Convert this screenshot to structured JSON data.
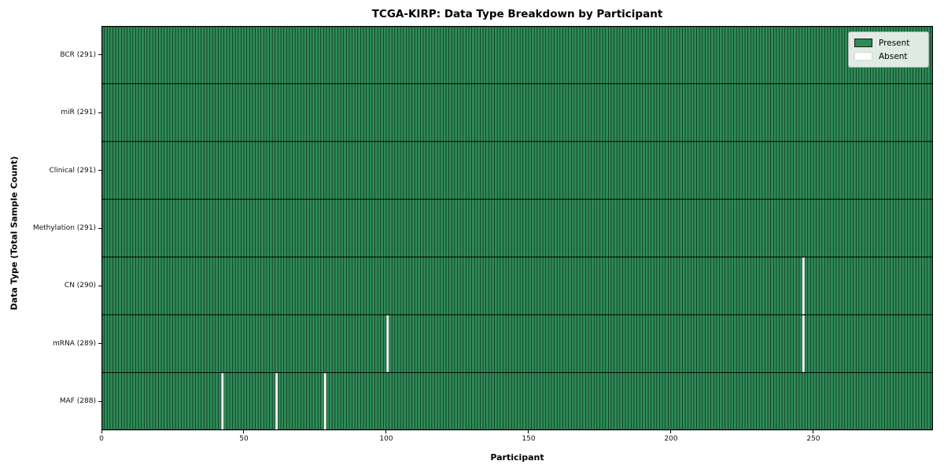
{
  "figure": {
    "title": "TCGA-KIRP: Data Type Breakdown by Participant",
    "xlabel": "Participant",
    "ylabel": "Data Type (Total Sample Count)"
  },
  "legend": {
    "items": [
      {
        "name": "present",
        "label": "Present",
        "color": "#2e8b57"
      },
      {
        "name": "absent",
        "label": "Absent",
        "color": "#ffffff"
      }
    ],
    "position": "upper right"
  },
  "chart_data": {
    "type": "heatmap",
    "title": "TCGA-KIRP: Data Type Breakdown by Participant",
    "xlabel": "Participant",
    "ylabel": "Data Type (Total Sample Count)",
    "n_participants": 291,
    "xlim": [
      0,
      292
    ],
    "x_ticks": [
      0,
      50,
      100,
      150,
      200,
      250
    ],
    "rows": [
      {
        "label": "BCR (291)",
        "data_type": "BCR",
        "present_count": 291,
        "absent_participants": []
      },
      {
        "label": "miR (291)",
        "data_type": "miR",
        "present_count": 291,
        "absent_participants": []
      },
      {
        "label": "Clinical (291)",
        "data_type": "Clinical",
        "present_count": 291,
        "absent_participants": []
      },
      {
        "label": "Methylation (291)",
        "data_type": "Methylation",
        "present_count": 291,
        "absent_participants": []
      },
      {
        "label": "CN (290)",
        "data_type": "CN",
        "present_count": 290,
        "absent_participants": [
          246
        ]
      },
      {
        "label": "mRNA (289)",
        "data_type": "mRNA",
        "present_count": 289,
        "absent_participants": [
          100,
          246
        ]
      },
      {
        "label": "MAF (288)",
        "data_type": "MAF",
        "present_count": 288,
        "absent_participants": [
          42,
          61,
          78
        ]
      }
    ],
    "colors": {
      "present": "#2e8b57",
      "absent": "#ffffff",
      "bar_edge": "#000000",
      "row_divider": "#000000",
      "spine": "#000000"
    },
    "grid": false,
    "legend_entries": [
      "Present",
      "Absent"
    ]
  }
}
